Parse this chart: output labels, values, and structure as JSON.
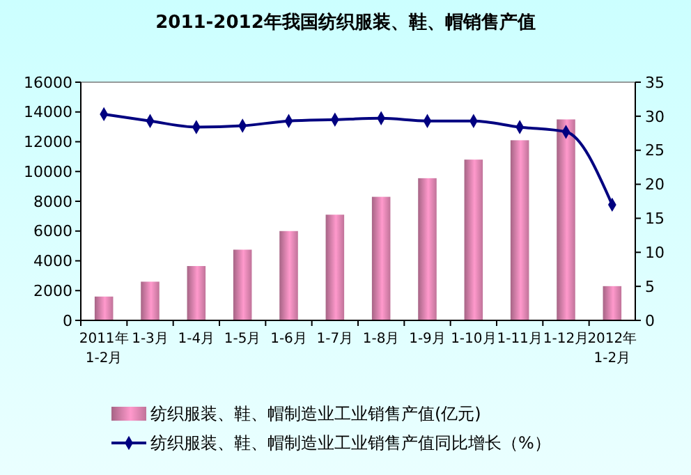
{
  "chart_data": {
    "type": "bar",
    "title": "2011-2012年我国纺织服装、鞋、帽销售产值",
    "categories": [
      "2011年\n1-2月",
      "1-3月",
      "1-4月",
      "1-5月",
      "1-6月",
      "1-7月",
      "1-8月",
      "1-9月",
      "1-10月",
      "1-11月",
      "1-12月",
      "2012年\n1-2月"
    ],
    "series": [
      {
        "name": "纺织服装、鞋、帽制造业工业销售产值(亿元)",
        "color": "#ff99cc",
        "values": [
          1600,
          2600,
          3650,
          4750,
          6000,
          7100,
          8300,
          9550,
          10800,
          12100,
          13500,
          2300
        ]
      },
      {
        "name": "纺织服装、鞋、帽制造业工业销售产值同比增长（%）",
        "type": "line",
        "axis": "y2",
        "color": "#000080",
        "marker": "diamond",
        "values": [
          30.3,
          29.3,
          28.4,
          28.6,
          29.3,
          29.5,
          29.7,
          29.3,
          29.3,
          28.4,
          27.7,
          17.0
        ]
      }
    ],
    "ylim": [
      0,
      16000
    ],
    "yticks": [
      0,
      2000,
      4000,
      6000,
      8000,
      10000,
      12000,
      14000,
      16000
    ],
    "y2lim": [
      0,
      35
    ],
    "y2ticks": [
      0,
      5,
      10,
      15,
      20,
      25,
      30,
      35
    ],
    "grid": false,
    "legend": "bottom"
  }
}
